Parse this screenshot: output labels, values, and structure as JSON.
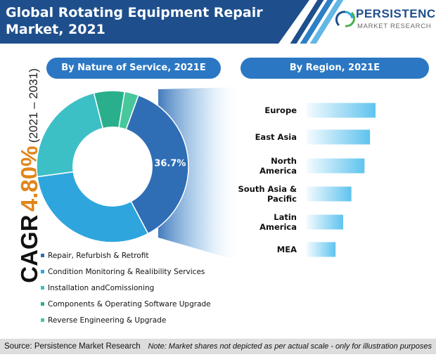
{
  "header": {
    "title_line1": "Global Rotating Equipment Repair",
    "title_line2": "Market, 2021"
  },
  "logo": {
    "name": "PERSISTENCE",
    "tagline": "MARKET RESEARCH"
  },
  "cagr": {
    "label": "CAGR",
    "value": "4.80%",
    "period": "(2021 – 2031)"
  },
  "colors": {
    "accent_orange": "#e0861a",
    "header_blue": "#1e4f8c",
    "pill_blue": "#2b77c3"
  },
  "chart_data": [
    {
      "type": "pie",
      "title": "By Nature of Service, 2021E",
      "labels": [
        "Repair, Refurbish & Retrofit",
        "Condition Monitoring & Realibility Services",
        "Installation andComissioning",
        "Components & Operating Software Upgrade",
        "Reverse Engineering & Upgrade"
      ],
      "values": [
        36.7,
        30.6,
        23.2,
        6.5,
        3.0
      ],
      "data_labels": [
        "36.7%",
        "",
        "",
        "",
        ""
      ],
      "colors": [
        "#2f6db5",
        "#2ea6dd",
        "#3dbfc6",
        "#2aaf8c",
        "#48c79d"
      ],
      "inner_radius_fraction": 0.52
    },
    {
      "type": "bar",
      "orientation": "horizontal",
      "title": "By Region, 2021E",
      "categories": [
        "Europe",
        "East Asia",
        "North America",
        "South Asia & Pacific",
        "Latin America",
        "MEA"
      ],
      "category_lines": [
        [
          "Europe"
        ],
        [
          "East Asia"
        ],
        [
          "North",
          "America"
        ],
        [
          "South Asia &",
          "Pacific"
        ],
        [
          "Latin",
          "America"
        ],
        [
          "MEA"
        ]
      ],
      "values": [
        100,
        92,
        84,
        65,
        53,
        42
      ],
      "value_note": "relative scale"
    }
  ],
  "footer": {
    "source": "Source: Persistence Market Research",
    "note": "Note: Market shares not depicted as per actual scale - only for illustration purposes"
  }
}
